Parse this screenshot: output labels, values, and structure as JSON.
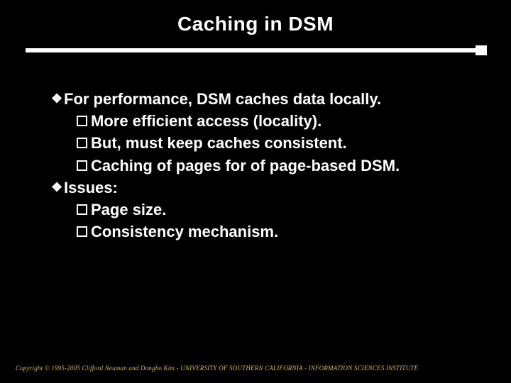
{
  "title": "Caching in DSM",
  "styling": {
    "background": "#000000",
    "text_color": "#ffffff",
    "footer_color": "#d6b84a",
    "title_fontsize": 28,
    "body_fontsize": 22,
    "footer_fontsize": 9,
    "divider_thickness": 6,
    "slide_width": 720,
    "slide_height": 540
  },
  "bullets": {
    "b0": {
      "level": 1,
      "text": "For performance, DSM caches data locally."
    },
    "b1": {
      "level": 2,
      "text": "More efficient access (locality)."
    },
    "b2": {
      "level": 2,
      "text": "But, must keep caches consistent."
    },
    "b3": {
      "level": 2,
      "text": "Caching of pages for of page-based DSM."
    },
    "b4": {
      "level": 1,
      "text": "Issues:"
    },
    "b5": {
      "level": 2,
      "text": "Page size."
    },
    "b6": {
      "level": 2,
      "text": "Consistency mechanism."
    }
  },
  "footer": "Copyright © 1995-2005 Clifford Neuman and Dongho Kim - UNIVERSITY OF SOUTHERN CALIFORNIA - INFORMATION SCIENCES INSTITUTE"
}
